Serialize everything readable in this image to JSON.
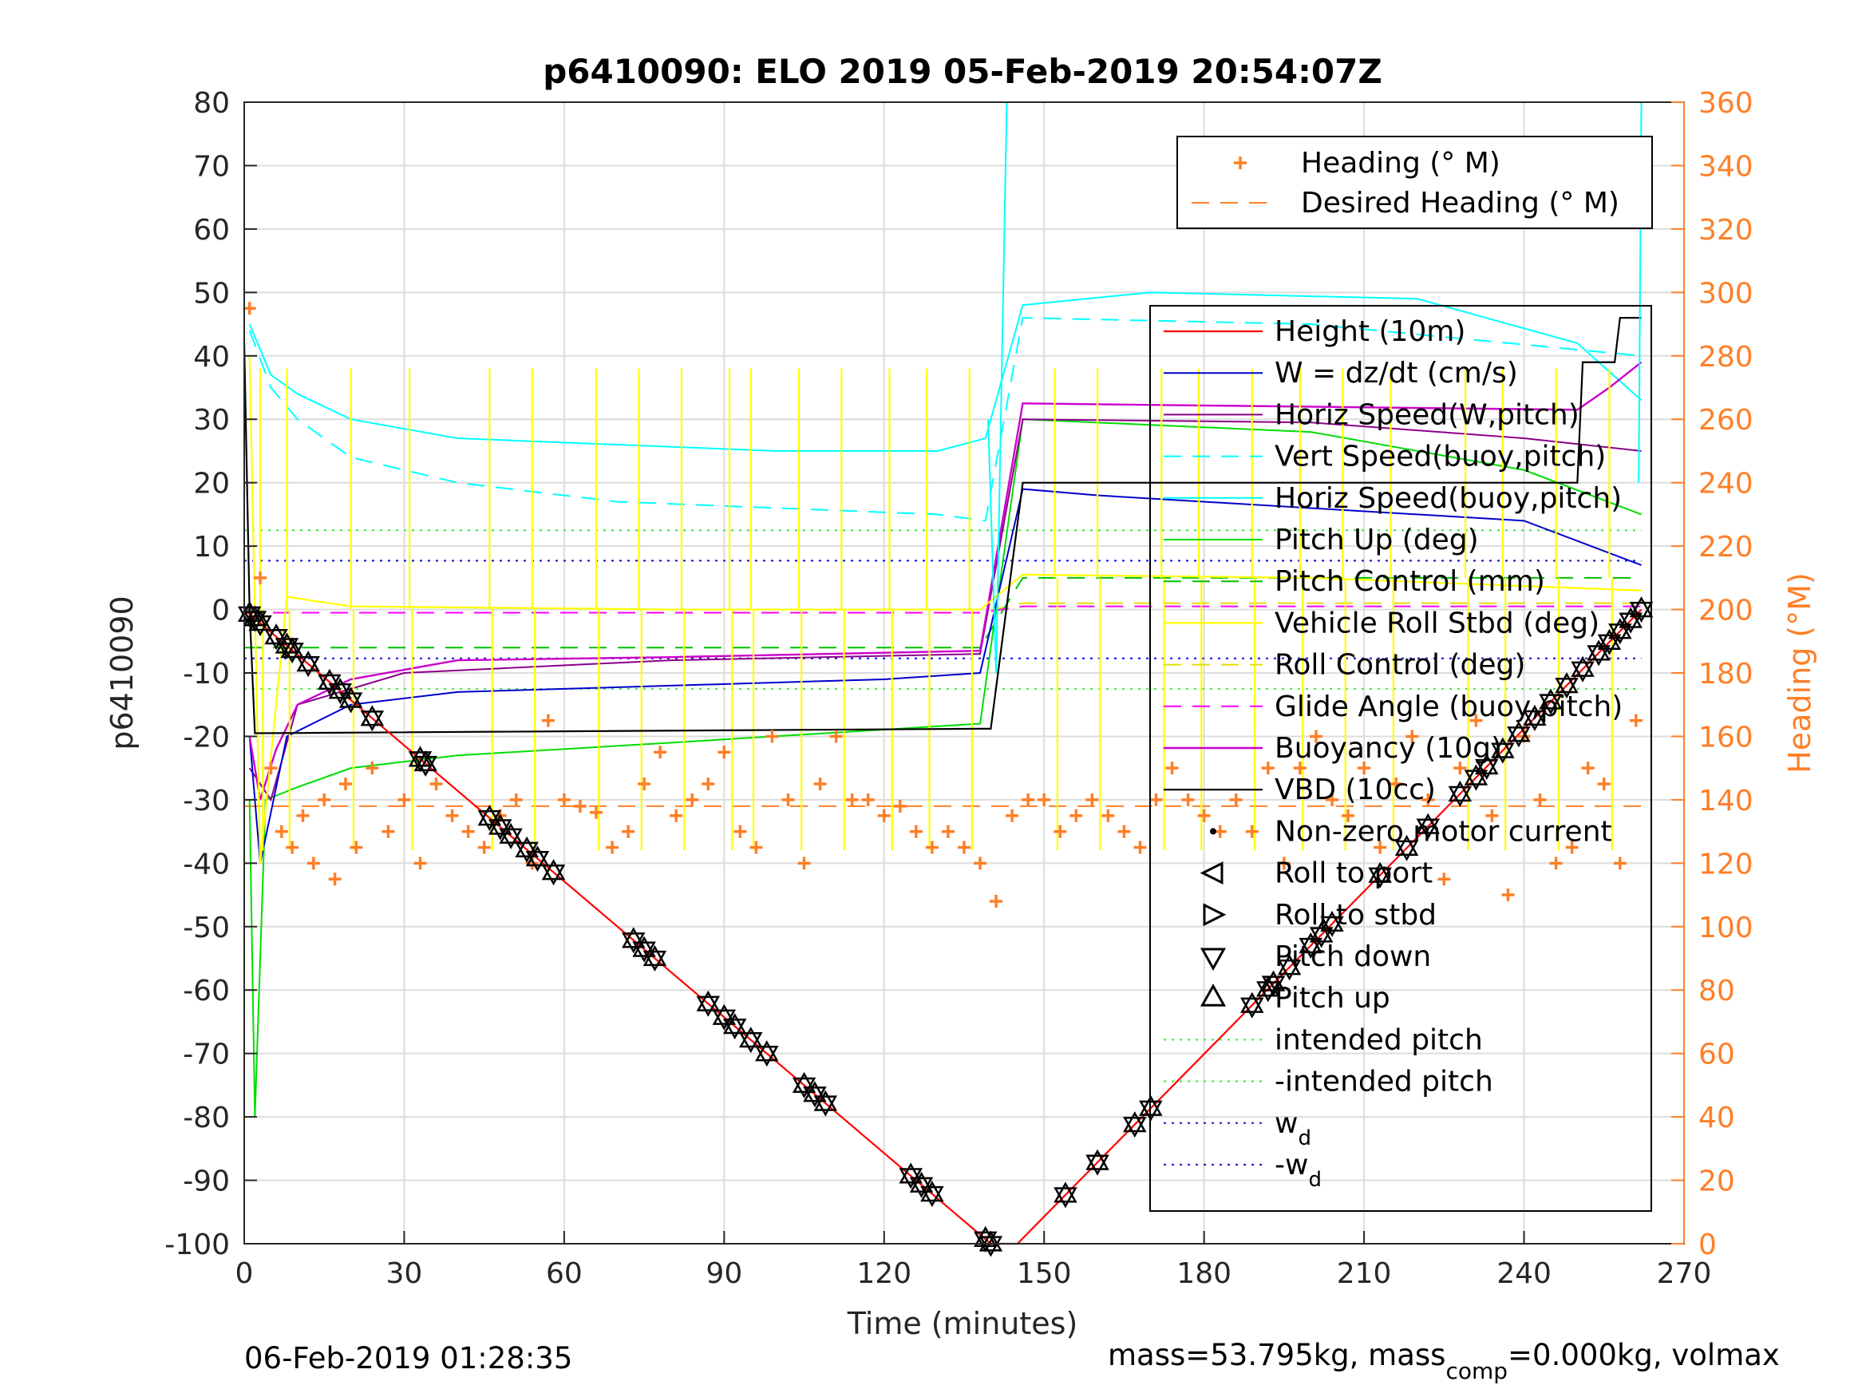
{
  "chart_data": {
    "type": "line",
    "title": "p6410090: ELO 2019 05-Feb-2019 20:54:07Z",
    "xlabel": "Time (minutes)",
    "ylabel": "p6410090",
    "y2label": "Heading (°M)",
    "xlim": [
      0,
      270
    ],
    "ylim": [
      -100,
      80
    ],
    "y2lim": [
      0,
      360
    ],
    "xticks": [
      "0",
      "30",
      "60",
      "90",
      "120",
      "150",
      "180",
      "210",
      "240",
      "270"
    ],
    "yticks": [
      "-100",
      "-90",
      "-80",
      "-70",
      "-60",
      "-50",
      "-40",
      "-30",
      "-20",
      "-10",
      "0",
      "10",
      "20",
      "30",
      "40",
      "50",
      "60",
      "70",
      "80"
    ],
    "y2ticks": [
      "0",
      "20",
      "40",
      "60",
      "80",
      "100",
      "120",
      "140",
      "160",
      "180",
      "200",
      "220",
      "240",
      "260",
      "280",
      "300",
      "320",
      "340",
      "360"
    ],
    "grid": true,
    "footer_left": "06-Feb-2019 01:28:35",
    "footer_right_parts": [
      "mass=53.795kg, mass",
      "comp",
      "=0.000kg, volmax"
    ],
    "colors": {
      "heading": "#ff7f27",
      "height": "#ff0000",
      "w": "#0000cd",
      "horiz_w": "#8b008b",
      "vert_buoy": "#0000ff",
      "horiz_buoy": "#00ffff",
      "pitch": "#00dd00",
      "pitch_ctrl": "#00c000",
      "roll": "#ffff00",
      "roll_ctrl": "#e0e000",
      "glide": "#ff00ff",
      "buoyancy": "#cc00cc",
      "vbd": "#000000"
    },
    "legend_heading": {
      "placement": "top-right",
      "entries": [
        "Heading (° M)",
        "Desired Heading (° M)"
      ]
    },
    "legend_main": {
      "placement": "right",
      "entries": [
        {
          "label": "Height (10m)"
        },
        {
          "label": "W = dz/dt (cm/s)"
        },
        {
          "label": "Horiz Speed(W,pitch)"
        },
        {
          "label": "Vert Speed(buoy,pitch)"
        },
        {
          "label": "Horiz Speed(buoy,pitch)"
        },
        {
          "label": "Pitch Up (deg)"
        },
        {
          "label": "Pitch Control (mm)"
        },
        {
          "label": "Vehicle Roll Stbd (deg)"
        },
        {
          "label": "Roll Control (deg)"
        },
        {
          "label": "Glide Angle (buoy,pitch)"
        },
        {
          "label": "Buoyancy (10g)"
        },
        {
          "label": "VBD (10cc)"
        },
        {
          "label": "Non-zero motor current"
        },
        {
          "label": "Roll to port"
        },
        {
          "label": "Roll to stbd"
        },
        {
          "label": "Pitch down"
        },
        {
          "label": "Pitch up"
        },
        {
          "label": "intended pitch"
        },
        {
          "label": "-intended pitch"
        },
        {
          "label": "w",
          "sub": "d"
        },
        {
          "label": "-w",
          "sub": "d"
        }
      ]
    },
    "series": [
      {
        "name": "Height (10m)",
        "x": [
          0,
          140,
          145,
          262
        ],
        "y": [
          0,
          -100,
          -100,
          0
        ]
      },
      {
        "name": "VBD (10cc)",
        "x": [
          0,
          1,
          2,
          138,
          140,
          146,
          250,
          251,
          257,
          258,
          262
        ],
        "y": [
          42,
          0,
          -19.5,
          -18.8,
          -18.8,
          20,
          20,
          39,
          39,
          46,
          46
        ]
      },
      {
        "name": "Buoyancy (10g)",
        "x": [
          1,
          3,
          6,
          10,
          20,
          40,
          80,
          138,
          146,
          250,
          256,
          262
        ],
        "y": [
          -20,
          -30,
          -22,
          -15,
          -11,
          -8,
          -7.5,
          -6.5,
          32.5,
          31.5,
          35,
          39
        ]
      },
      {
        "name": "W = dz/dt (cm/s)",
        "x": [
          1,
          3,
          8,
          20,
          40,
          80,
          120,
          138,
          146,
          160,
          200,
          240,
          262
        ],
        "y": [
          -20,
          -40,
          -20,
          -15,
          -13,
          -12,
          -11,
          -10,
          19,
          18,
          16,
          14,
          7
        ]
      },
      {
        "name": "Horiz Speed(W,pitch)",
        "x": [
          1,
          5,
          10,
          30,
          80,
          138,
          146,
          200,
          240,
          262
        ],
        "y": [
          -25,
          -30,
          -15,
          -10,
          -8,
          -7,
          30,
          29.5,
          27,
          25
        ]
      },
      {
        "name": "Horiz Speed(buoy,pitch)",
        "x": [
          1,
          5,
          10,
          20,
          40,
          70,
          100,
          130,
          139,
          146,
          170,
          220,
          250,
          262
        ],
        "y": [
          45,
          37,
          34,
          30,
          27,
          26,
          25,
          25,
          27,
          48,
          50,
          49,
          42,
          33
        ]
      },
      {
        "name": "Vert Speed(buoy,pitch)",
        "x": [
          1,
          5,
          10,
          20,
          40,
          70,
          100,
          130,
          139,
          146,
          200,
          262
        ],
        "y": [
          44,
          35,
          30,
          24,
          20,
          17,
          16,
          15,
          14,
          46,
          45,
          40
        ]
      },
      {
        "name": "Pitch Up (deg)",
        "x": [
          1,
          2,
          4,
          10,
          20,
          40,
          80,
          138,
          146,
          200,
          240,
          262
        ],
        "y": [
          -30,
          -80,
          -30,
          -28,
          -25,
          -23,
          -21,
          -18,
          30,
          28,
          22,
          15
        ]
      },
      {
        "name": "Pitch Control (mm)",
        "x": [
          0,
          138,
          146,
          262
        ],
        "y": [
          -6,
          -6,
          5,
          5
        ]
      },
      {
        "name": "Vehicle Roll Stbd (deg)",
        "x": [
          1,
          3,
          8,
          20,
          80,
          138,
          146,
          200,
          262
        ],
        "y": [
          40,
          -40,
          2,
          0.5,
          0,
          0,
          5.5,
          5,
          3
        ]
      },
      {
        "name": "Roll Control (deg)",
        "x": [
          0,
          138,
          146,
          262
        ],
        "y": [
          -0.5,
          -0.5,
          1,
          1
        ]
      },
      {
        "name": "Glide Angle (buoy,pitch)",
        "x": [
          0,
          138,
          146,
          262
        ],
        "y": [
          -0.5,
          -0.5,
          0.5,
          0.5
        ]
      },
      {
        "name": "intended pitch",
        "x": [
          0,
          262
        ],
        "y": [
          12.5,
          12.5
        ]
      },
      {
        "name": "-intended pitch",
        "x": [
          0,
          262
        ],
        "y": [
          -12.5,
          -12.5
        ]
      },
      {
        "name": "w_d",
        "x": [
          0,
          262
        ],
        "y": [
          7.7,
          7.7
        ]
      },
      {
        "name": "-w_d",
        "x": [
          0,
          262
        ],
        "y": [
          -7.7,
          -7.7
        ]
      },
      {
        "name": "Desired Heading (° M)",
        "x": [
          0,
          262
        ],
        "y2": [
          138,
          138
        ]
      }
    ],
    "roll_spikes_x": [
      3,
      8,
      20,
      31,
      46,
      54,
      66,
      74,
      82,
      91,
      95,
      104,
      112,
      121,
      128,
      136,
      152,
      160,
      172,
      179,
      189,
      198,
      206,
      215,
      229,
      236,
      246,
      256
    ],
    "heading_points": {
      "x": [
        1,
        3,
        5,
        7,
        9,
        11,
        13,
        15,
        17,
        19,
        21,
        24,
        27,
        30,
        33,
        36,
        39,
        42,
        45,
        48,
        51,
        54,
        57,
        60,
        63,
        66,
        69,
        72,
        75,
        78,
        81,
        84,
        87,
        90,
        93,
        96,
        99,
        102,
        105,
        108,
        111,
        114,
        117,
        120,
        123,
        126,
        129,
        132,
        135,
        138,
        141,
        144,
        147,
        150,
        153,
        156,
        159,
        162,
        165,
        168,
        171,
        174,
        177,
        180,
        183,
        186,
        189,
        192,
        195,
        198,
        201,
        204,
        207,
        210,
        213,
        216,
        219,
        222,
        225,
        228,
        231,
        234,
        237,
        240,
        243,
        246,
        249,
        252,
        255,
        258,
        261
      ],
      "y2": [
        295,
        210,
        150,
        130,
        125,
        135,
        120,
        140,
        115,
        145,
        125,
        150,
        130,
        140,
        120,
        145,
        135,
        130,
        125,
        135,
        140,
        120,
        165,
        140,
        138,
        136,
        125,
        130,
        145,
        155,
        135,
        140,
        145,
        155,
        130,
        125,
        160,
        140,
        120,
        145,
        160,
        140,
        140,
        135,
        138,
        130,
        125,
        130,
        125,
        120,
        108,
        135,
        140,
        140,
        130,
        135,
        140,
        135,
        130,
        125,
        140,
        150,
        140,
        135,
        130,
        140,
        130,
        150,
        120,
        150,
        160,
        140,
        135,
        150,
        125,
        145,
        160,
        140,
        115,
        150,
        165,
        135,
        110,
        160,
        140,
        120,
        125,
        150,
        145,
        120,
        165
      ]
    },
    "markers": {
      "x": [
        1,
        2,
        3,
        6,
        8,
        9,
        12,
        16,
        18,
        20,
        24,
        33,
        34,
        46,
        48,
        50,
        53,
        55,
        58,
        73,
        75,
        77,
        87,
        90,
        92,
        95,
        98,
        105,
        107,
        109,
        125,
        127,
        129,
        139,
        140,
        154,
        160,
        167,
        170,
        189,
        192,
        193,
        196,
        200,
        202,
        204,
        213,
        218,
        222,
        228,
        231,
        233,
        236,
        239,
        242,
        245,
        248,
        251,
        254,
        256,
        258,
        260,
        262
      ]
    }
  }
}
